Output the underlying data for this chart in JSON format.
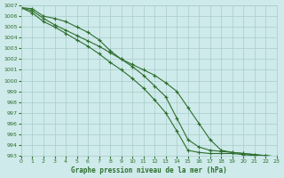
{
  "title": "Graphe pression niveau de la mer (hPa)",
  "bg_color": "#ceeaea",
  "grid_color": "#aacccc",
  "line_color": "#2d6e2d",
  "xlim": [
    0,
    23
  ],
  "ylim": [
    993,
    1007
  ],
  "x": [
    0,
    1,
    2,
    3,
    4,
    5,
    6,
    7,
    8,
    9,
    10,
    11,
    12,
    13,
    14,
    15,
    16,
    17,
    18,
    19,
    20,
    21,
    22,
    23
  ],
  "series": [
    [
      1006.8,
      1006.7,
      1006.0,
      1005.8,
      1005.5,
      1005.0,
      1004.5,
      1003.8,
      1002.8,
      1002.0,
      1001.5,
      1001.0,
      1000.5,
      999.8,
      999.0,
      997.5,
      996.0,
      994.5,
      993.5,
      993.3,
      993.2,
      993.1,
      993.0,
      992.9
    ],
    [
      1006.8,
      1006.5,
      1005.8,
      1005.2,
      1004.7,
      1004.2,
      1003.7,
      1003.2,
      1002.6,
      1002.0,
      1001.3,
      1000.5,
      999.5,
      998.5,
      996.5,
      994.5,
      993.8,
      993.5,
      993.4,
      993.3,
      993.2,
      993.1,
      993.0,
      992.9
    ],
    [
      1006.8,
      1006.3,
      1005.5,
      1005.0,
      1004.4,
      1003.8,
      1003.2,
      1002.5,
      1001.7,
      1001.0,
      1000.2,
      999.3,
      998.2,
      997.0,
      995.3,
      993.5,
      993.3,
      993.2,
      993.2,
      993.2,
      993.1,
      993.0,
      993.0,
      992.9
    ]
  ]
}
